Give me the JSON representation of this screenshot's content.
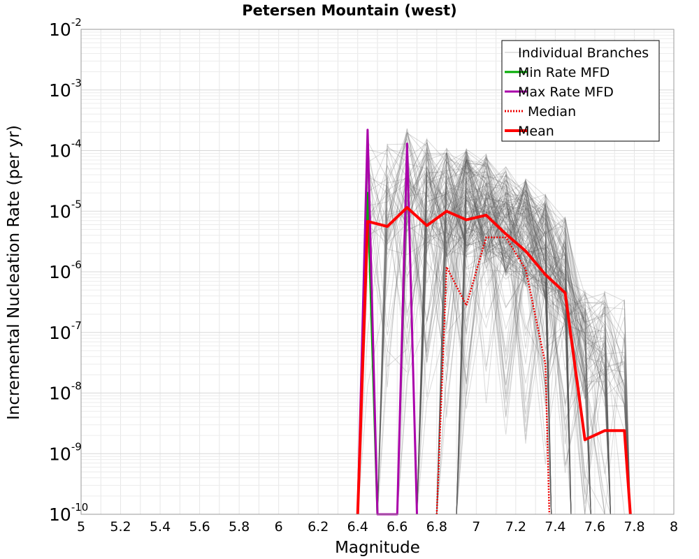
{
  "chart_data": {
    "type": "line",
    "title": "Petersen Mountain (west)",
    "xlabel": "Magnitude",
    "ylabel": "Incremental Nucleation Rate (per yr)",
    "xlim": [
      5,
      8
    ],
    "ylim": [
      1e-10,
      0.01
    ],
    "yscale": "log",
    "grid": true,
    "legend_position": "top-right",
    "x_ticks": [
      "5",
      "5.2",
      "5.4",
      "5.6",
      "5.8",
      "6",
      "6.2",
      "6.4",
      "6.6",
      "6.8",
      "7",
      "7.2",
      "7.4",
      "7.6",
      "7.8",
      "8"
    ],
    "y_ticks": [
      {
        "base": "10",
        "exp": "-2",
        "value": 0.01
      },
      {
        "base": "10",
        "exp": "-3",
        "value": 0.001
      },
      {
        "base": "10",
        "exp": "-4",
        "value": 0.0001
      },
      {
        "base": "10",
        "exp": "-5",
        "value": 1e-05
      },
      {
        "base": "10",
        "exp": "-6",
        "value": 1e-06
      },
      {
        "base": "10",
        "exp": "-7",
        "value": 1e-07
      },
      {
        "base": "10",
        "exp": "-8",
        "value": 1e-08
      },
      {
        "base": "10",
        "exp": "-9",
        "value": 1e-09
      },
      {
        "base": "10",
        "exp": "-10",
        "value": 1e-10
      }
    ],
    "series": [
      {
        "name": "Individual Branches",
        "color": "#555555",
        "style": "thin",
        "envelope_upper": {
          "x": [
            6.45,
            6.55,
            6.65,
            6.75,
            6.85,
            6.95,
            7.05,
            7.15,
            7.25,
            7.35,
            7.45,
            7.55,
            7.65,
            7.75
          ],
          "y": [
            0.00018,
            0.00015,
            0.00025,
            0.00016,
            0.00011,
            0.00011,
            9e-05,
            5.5e-05,
            3.5e-05,
            1.9e-05,
            8e-06,
            5e-07,
            5e-07,
            3.5e-07
          ]
        }
      },
      {
        "name": "Min Rate MFD",
        "color": "#00aa00",
        "style": "solid",
        "x": [
          6.4,
          6.45,
          6.5
        ],
        "y": [
          1e-10,
          2e-05,
          1e-10
        ]
      },
      {
        "name": "Max Rate MFD",
        "color": "#aa00aa",
        "style": "solid",
        "x": [
          6.4,
          6.45,
          6.5,
          6.6,
          6.65,
          6.7
        ],
        "y": [
          1e-10,
          0.00022,
          1e-10,
          1e-10,
          0.00013,
          1e-10
        ]
      },
      {
        "name": "Median",
        "color": "#ee0000",
        "style": "dotted",
        "x": [
          6.8,
          6.85,
          6.95,
          7.05,
          7.15,
          7.25,
          7.35,
          7.37
        ],
        "y": [
          1e-10,
          1.2e-06,
          2.8e-07,
          3.7e-06,
          3.7e-06,
          1.1e-06,
          3e-08,
          1e-10
        ]
      },
      {
        "name": "Mean",
        "color": "#ff0000",
        "style": "bold",
        "x": [
          6.4,
          6.45,
          6.55,
          6.65,
          6.75,
          6.85,
          6.95,
          7.05,
          7.15,
          7.25,
          7.35,
          7.45,
          7.55,
          7.65,
          7.75,
          7.78
        ],
        "y": [
          1e-10,
          6.8e-06,
          5.6e-06,
          1.15e-05,
          5.8e-06,
          1e-05,
          7.2e-06,
          8.6e-06,
          4.2e-06,
          2.2e-06,
          9e-07,
          4.5e-07,
          1.7e-09,
          2.4e-09,
          2.4e-09,
          1e-10
        ]
      }
    ]
  }
}
